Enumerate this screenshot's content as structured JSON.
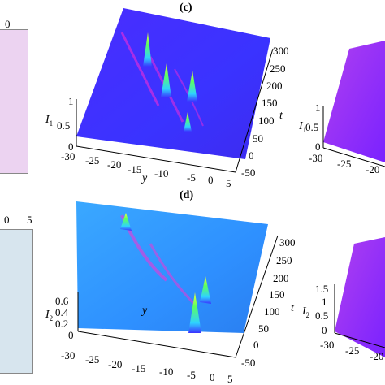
{
  "panels": {
    "c": {
      "label": "(c)",
      "t_axis_title": "t",
      "t_ticks": [
        "300",
        "250",
        "200",
        "150",
        "100",
        "50",
        "0",
        "-50"
      ],
      "y_axis_title": "y",
      "y_ticks": [
        "-30",
        "-25",
        "-20",
        "-15",
        "-10",
        "-5",
        "0",
        "5"
      ],
      "z_axis_title": "I",
      "z_axis_sub": "1",
      "z_ticks": [
        "1",
        "0.5",
        "0"
      ]
    },
    "d": {
      "label": "(d)",
      "t_axis_title": "t",
      "t_ticks": [
        "300",
        "250",
        "200",
        "150",
        "100",
        "50",
        "0",
        "-50"
      ],
      "y_axis_title": "y",
      "y_ticks": [
        "-30",
        "-25",
        "-20",
        "-15",
        "-10",
        "-5",
        "0",
        "5"
      ],
      "z_axis_title": "I",
      "z_axis_sub": "2",
      "z_ticks": [
        "0.6",
        "0.4",
        "0.2",
        "0"
      ]
    },
    "left_top": {
      "tick": "0"
    },
    "left_bottom": {
      "ticks": [
        "0",
        "5"
      ]
    },
    "right_top": {
      "z_axis_title": "I",
      "z_axis_sub": "1",
      "z_ticks": [
        "1",
        "0.5",
        "0"
      ],
      "y_ticks": [
        "-30",
        "-25",
        "-20"
      ]
    },
    "right_bottom": {
      "z_axis_title": "I",
      "z_axis_sub": "2",
      "z_ticks": [
        "1.5",
        "1",
        "0.5",
        "0"
      ],
      "y_ticks": [
        "-30",
        "-25",
        "-20"
      ]
    }
  },
  "colors": {
    "surface_blue": "#3a33ff",
    "surface_sky": "#2e90ff",
    "surface_violet": "#8a2cff",
    "left_top_fill": "#ecd3f1",
    "left_bottom_fill": "#d7e5ee",
    "peak_green": "#5cff60",
    "peak_yellow": "#f4ff3a",
    "trail_magenta": "#ff2bd4"
  }
}
